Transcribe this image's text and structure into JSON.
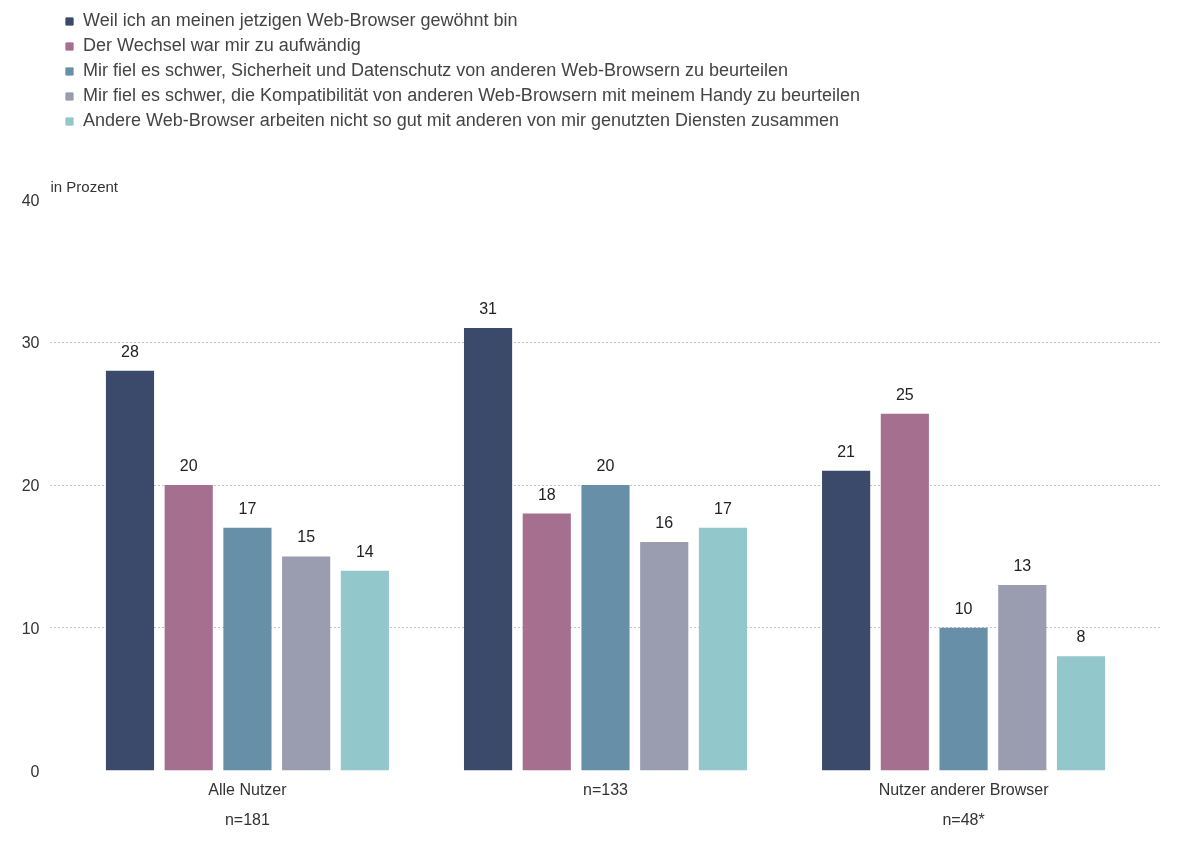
{
  "chart_data": {
    "type": "bar",
    "ylabel": "in Prozent",
    "categories": [
      "Alle Nutzer\nn=181",
      "n=133",
      "Nutzer anderer Browser\nn=48*"
    ],
    "series": [
      {
        "name": "Weil ich an meinen jetzigen Web-Browser gewöhnt bin",
        "color": "#3b4a6b",
        "values": [
          28,
          31,
          21
        ]
      },
      {
        "name": "Der Wechsel war mir zu aufwändig",
        "color": "#a5708f",
        "values": [
          20,
          18,
          25
        ]
      },
      {
        "name": "Mir fiel es schwer, Sicherheit und Datenschutz von anderen Web-Browsern zu beurteilen",
        "color": "#6790a8",
        "values": [
          17,
          20,
          10
        ]
      },
      {
        "name": "Mir fiel es schwer, die Kompatibilität von anderen Web-Browsern mit meinem Handy zu beurteilen",
        "color": "#9a9caf",
        "values": [
          15,
          16,
          13
        ]
      },
      {
        "name": "Andere Web-Browser arbeiten nicht so gut mit anderen von mir genutzten Diensten zusammen",
        "color": "#92c7cb",
        "values": [
          14,
          17,
          8
        ]
      }
    ],
    "ylim": [
      0,
      40
    ],
    "yticks": [
      0,
      10,
      20,
      30,
      40
    ],
    "grid": "y",
    "legend": "top left",
    "data_labels": true
  }
}
